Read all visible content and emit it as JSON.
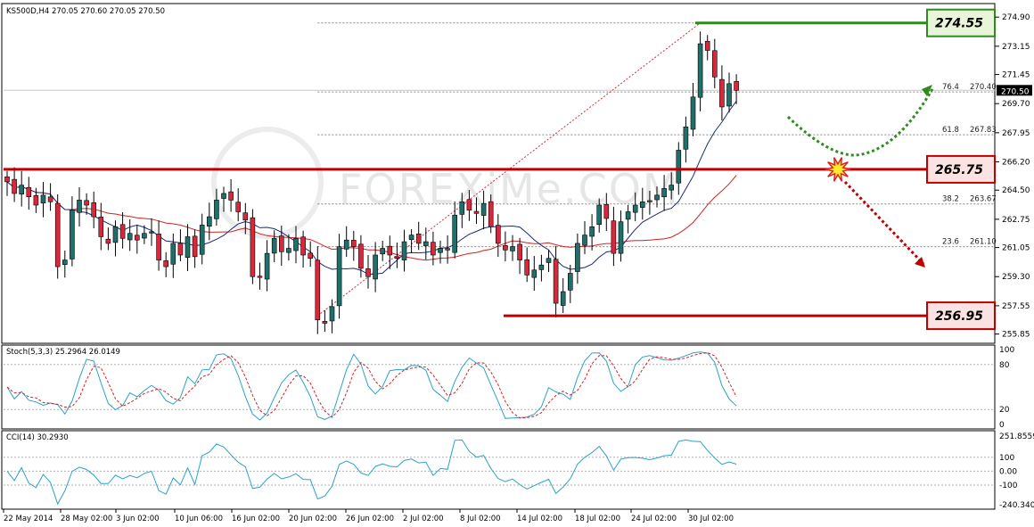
{
  "header": {
    "symbol_line": "KS500D,H4  270.05 270.60 270.05 270.50",
    "stoch_label": "Stoch(5,3,3) 25.2964 26.0149",
    "cci_label": "CCI(14) 30.2930",
    "watermark": "FOREXiMe.COM",
    "current_price_tag": "270.50"
  },
  "colors": {
    "bull": "#1f6f6a",
    "bear": "#d8283c",
    "resistance": "#c00000",
    "target_up": "#2e8b1e",
    "target_down": "#c00000",
    "ma_fast": "#1c2a7a",
    "ma_slow": "#d62020",
    "stoch_main": "#2aa3c7",
    "stoch_signal": "#d62020",
    "cci": "#2aa3c7",
    "fib": "#888888"
  },
  "chart_data": [
    {
      "type": "candlestick",
      "title": "KS500D,H4",
      "ylim": [
        255.4,
        275.5
      ],
      "y_ticks": [
        "274.90",
        "273.15",
        "271.45",
        "269.70",
        "267.95",
        "266.20",
        "264.50",
        "262.75",
        "261.05",
        "259.30",
        "257.55",
        "255.85"
      ],
      "x_ticks": [
        "22 May 2014",
        "28 May 02:00",
        "3 Jun 02:00",
        "10 Jun 06:00",
        "16 Jun 02:00",
        "20 Jun 02:00",
        "26 Jun 02:00",
        "2 Jul 02:00",
        "8 Jul 02:00",
        "14 Jul 02:00",
        "18 Jul 02:00",
        "24 Jul 02:00",
        "30 Jul 02:00"
      ],
      "closes": [
        265.0,
        264.3,
        264.8,
        264.1,
        263.6,
        264.2,
        263.8,
        259.9,
        260.3,
        263.3,
        263.9,
        263.6,
        262.9,
        261.7,
        261.3,
        262.3,
        261.6,
        261.9,
        261.5,
        261.9,
        262.0,
        260.3,
        259.9,
        261.3,
        260.6,
        261.7,
        260.5,
        262.4,
        262.9,
        263.9,
        264.3,
        263.9,
        263.2,
        262.7,
        259.3,
        259.3,
        260.7,
        261.6,
        260.8,
        261.0,
        261.6,
        260.6,
        260.4,
        256.7,
        256.5,
        257.5,
        261.1,
        261.5,
        261.1,
        259.8,
        259.3,
        260.6,
        261.0,
        260.6,
        260.4,
        261.4,
        261.8,
        261.3,
        261.4,
        260.6,
        261.0,
        260.9,
        263.0,
        263.8,
        263.3,
        263.1,
        263.7,
        262.3,
        261.3,
        260.9,
        261.1,
        260.3,
        259.4,
        259.7,
        260.0,
        260.4,
        257.7,
        258.4,
        259.5,
        261.3,
        261.8,
        262.3,
        263.6,
        262.8,
        260.7,
        262.6,
        263.2,
        263.6,
        263.8,
        263.8,
        264.2,
        264.6,
        264.8,
        266.9,
        268.3,
        270.1,
        273.3,
        272.9,
        271.3,
        269.5,
        270.9,
        270.5
      ],
      "stoch_ylim": [
        0,
        100
      ],
      "stoch_ticks": [
        "100",
        "80",
        "20",
        "0"
      ],
      "cci_ylim": [
        -240.3,
        251.86
      ],
      "cci_ticks": [
        "251.8559",
        "100",
        "0.00",
        "-100",
        "-240.340"
      ],
      "levels": [
        {
          "name": "target_up",
          "value": 274.55,
          "label": "274.55"
        },
        {
          "name": "resistance",
          "value": 265.75,
          "label": "265.75"
        },
        {
          "name": "target_down",
          "value": 256.95,
          "label": "256.95"
        }
      ],
      "fib_levels": [
        {
          "pct": "76.4",
          "price": "270.40",
          "value": 270.4
        },
        {
          "pct": "61.8",
          "price": "267.83",
          "value": 267.83
        },
        {
          "pct": "38.2",
          "price": "263.67",
          "value": 263.67
        },
        {
          "pct": "23.6",
          "price": "261.10",
          "value": 261.1
        }
      ]
    }
  ]
}
